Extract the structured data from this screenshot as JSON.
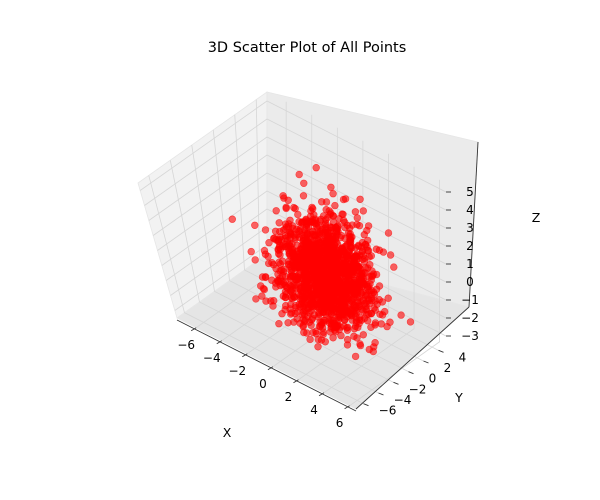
{
  "chart_data": {
    "type": "scatter",
    "projection": "3d",
    "title": "3D Scatter Plot of All Points",
    "xlabel": "X",
    "ylabel": "Y",
    "zlabel": "Z",
    "xlim": [
      -7.5,
      6.5
    ],
    "ylim": [
      -7,
      5
    ],
    "zlim": [
      -3.5,
      5.5
    ],
    "xticks": [
      -6,
      -4,
      -2,
      0,
      2,
      4,
      6
    ],
    "yticks": [
      -6,
      -4,
      -2,
      0,
      2,
      4
    ],
    "zticks": [
      -3,
      -2,
      -1,
      0,
      1,
      2,
      3,
      4,
      5
    ],
    "grid": true,
    "legend": "none",
    "series": [
      {
        "color": "#ff0000",
        "marker": "circle",
        "alpha": 0.6,
        "distribution": {
          "count": 1500,
          "center": [
            0.5,
            0,
            0
          ],
          "std": [
            1.6,
            1.5,
            1.5
          ],
          "xrange": [
            -6.5,
            6
          ],
          "yrange": [
            -6.5,
            4.5
          ],
          "zrange": [
            -3.2,
            5
          ]
        }
      }
    ]
  }
}
